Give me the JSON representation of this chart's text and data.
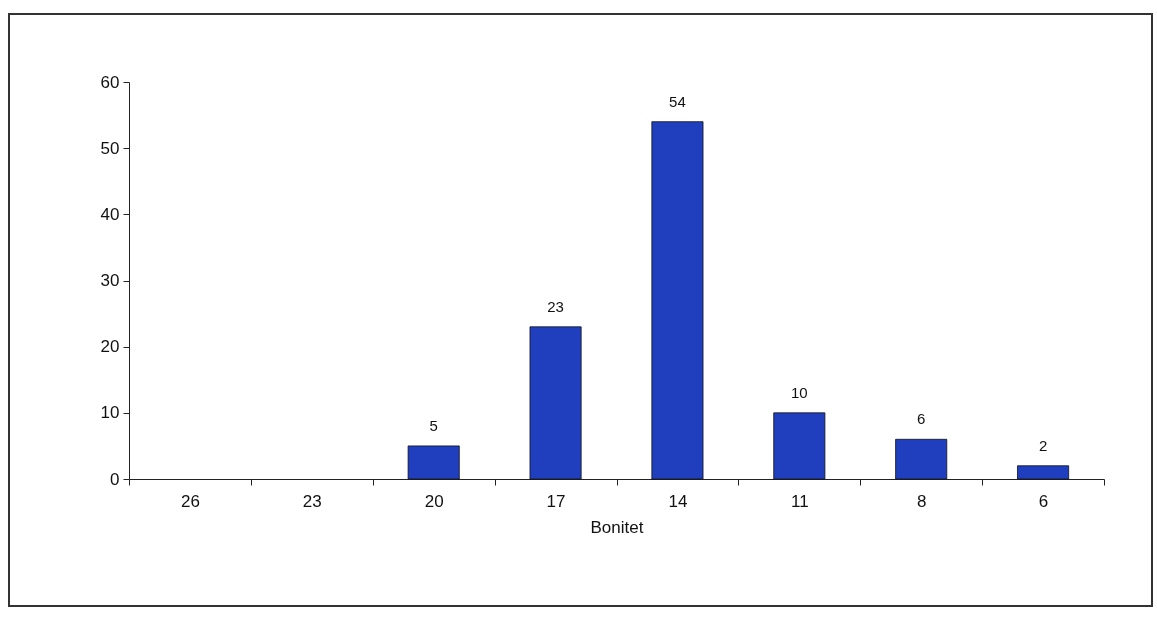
{
  "chart_data": {
    "type": "bar",
    "xlabel": "Bonitet",
    "categories": [
      "26",
      "23",
      "20",
      "17",
      "14",
      "11",
      "8",
      "6"
    ],
    "values": [
      null,
      null,
      5,
      23,
      54,
      10,
      6,
      2
    ],
    "color": "#1f3fbf",
    "ylim": [
      0,
      60
    ],
    "yticks": [
      0,
      10,
      20,
      30,
      40,
      50,
      60
    ],
    "data_labels": true
  }
}
